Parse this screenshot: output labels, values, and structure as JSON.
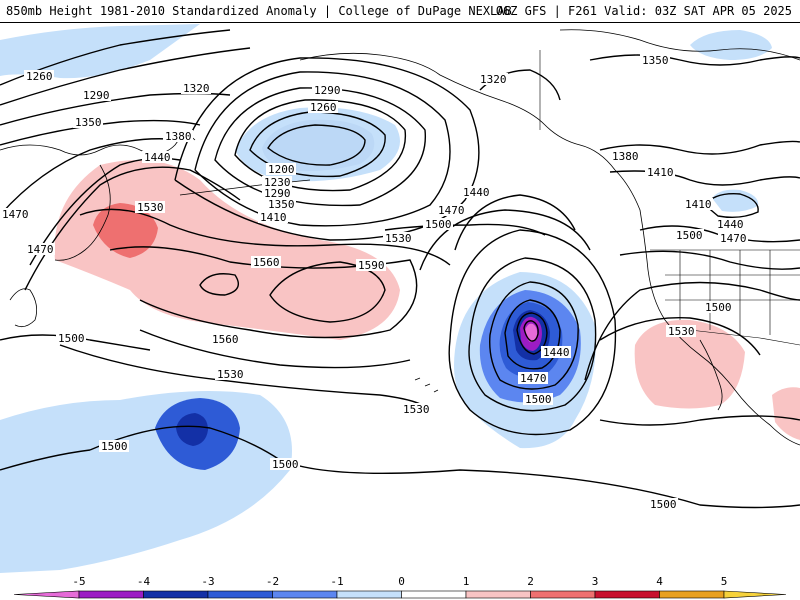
{
  "header": {
    "title_left": "850mb Height 1981-2010 Standardized Anomaly | College of DuPage NEXLAB",
    "title_right": "06Z GFS | F261 Valid: 03Z SAT APR 05 2025"
  },
  "legend": {
    "tick_labels": [
      "-5",
      "-4",
      "-3",
      "-2",
      "-1",
      "0",
      "1",
      "2",
      "3",
      "4",
      "5"
    ],
    "colors": [
      "#e66bd8",
      "#9c1cc4",
      "#1330a6",
      "#2e5bd6",
      "#5c86f0",
      "#c5e0fa",
      "#ffffff",
      "#f9c4c4",
      "#ee7070",
      "#c8102e",
      "#e8a020",
      "#f6d23c"
    ]
  },
  "contour_labels": [
    "1260",
    "1290",
    "1320",
    "1350",
    "1380",
    "1470",
    "1440",
    "1530",
    "1560",
    "1590",
    "1500",
    "1290",
    "1260",
    "1200",
    "1230",
    "1290",
    "1350",
    "1410",
    "1530",
    "1560",
    "1530",
    "1500",
    "1470",
    "1440",
    "1470",
    "1500",
    "1530",
    "1500",
    "1500",
    "1320",
    "1350",
    "1380",
    "1410",
    "1410",
    "1440",
    "1470",
    "1500",
    "1500",
    "1530",
    "1440",
    "1470",
    "1500"
  ]
}
